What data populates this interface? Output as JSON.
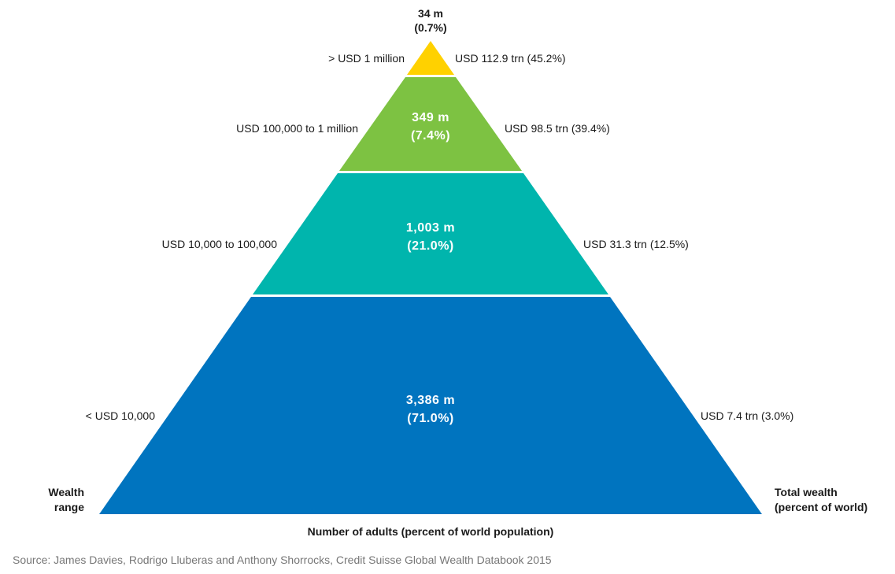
{
  "tiers": [
    {
      "key": "top",
      "adults": "34 m",
      "share": "(0.7%)",
      "range": "> USD 1 million",
      "wealth": "USD 112.9 trn (45.2%)",
      "color": "#FFD100"
    },
    {
      "key": "upper",
      "adults": "349 m",
      "share": "(7.4%)",
      "range": "USD 100,000 to 1 million",
      "wealth": "USD 98.5 trn (39.4%)",
      "color": "#7DC242"
    },
    {
      "key": "middle",
      "adults": "1,003 m",
      "share": "(21.0%)",
      "range": "USD 10,000 to 100,000",
      "wealth": "USD 31.3 trn (12.5%)",
      "color": "#00B5AD"
    },
    {
      "key": "base",
      "adults": "3,386 m",
      "share": "(71.0%)",
      "range": "< USD 10,000",
      "wealth": "USD 7.4 trn (3.0%)",
      "color": "#0074BF"
    }
  ],
  "labels": {
    "wealth_range_1": "Wealth",
    "wealth_range_2": "range",
    "total_wealth_1": "Total wealth",
    "total_wealth_2": "(percent of world)",
    "x_axis": "Number of adults (percent of world population)",
    "source": "Source: James Davies, Rodrigo Lluberas and Anthony Shorrocks, Credit Suisse Global Wealth Databook 2015"
  }
}
